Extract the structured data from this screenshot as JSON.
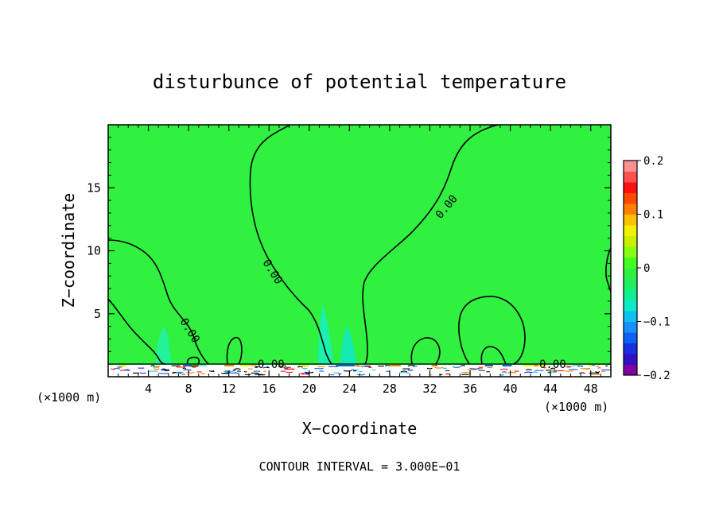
{
  "chart_data": {
    "type": "heatmap",
    "title": "disturbunce of potential temperature",
    "xlabel": "X−coordinate",
    "ylabel": "Z−coordinate",
    "x_unit": "(×1000 m)",
    "x_unit_right": "(×1000 m)",
    "xlim": [
      0,
      50
    ],
    "ylim": [
      0,
      20
    ],
    "x_ticks": [
      4,
      8,
      12,
      16,
      20,
      24,
      28,
      32,
      36,
      40,
      44,
      48
    ],
    "y_ticks": [
      5,
      10,
      15
    ],
    "contour_interval_text": "CONTOUR INTERVAL = 3.000E−01",
    "contour_label": "0.00",
    "colorbar": {
      "range": [
        -0.2,
        0.2
      ],
      "ticks": [
        {
          "value": 0.2,
          "label": "0.2"
        },
        {
          "value": 0.1,
          "label": "0.1"
        },
        {
          "value": 0,
          "label": "0"
        },
        {
          "value": -0.1,
          "label": "−0.1"
        },
        {
          "value": -0.2,
          "label": "−0.2"
        }
      ],
      "colors": [
        "#8000a0",
        "#3010c0",
        "#1830e0",
        "#1060f0",
        "#1890ff",
        "#10c0f0",
        "#10e8c8",
        "#10f090",
        "#20f060",
        "#30f040",
        "#40ff20",
        "#88ff10",
        "#c8f000",
        "#f0f000",
        "#ffc000",
        "#ff8000",
        "#ff4800",
        "#ff1010",
        "#ff5050",
        "#ff9090"
      ]
    },
    "background_color": "#30f040"
  }
}
